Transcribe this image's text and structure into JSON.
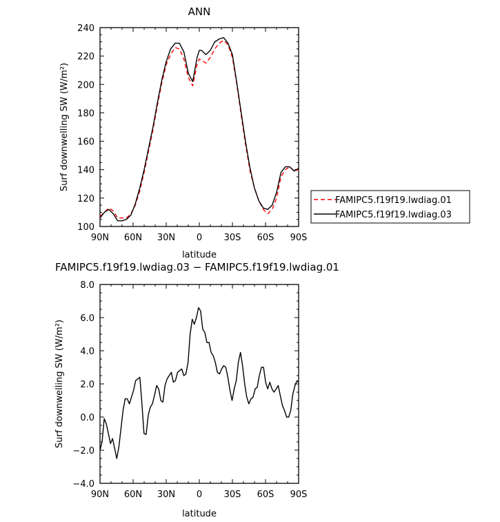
{
  "chart_data": [
    {
      "type": "line",
      "title": "ANN",
      "xlabel": "latitude",
      "ylabel": "Surf downwelling SW (W/m²)",
      "xlim": [
        90,
        -90
      ],
      "ylim": [
        100,
        240
      ],
      "x_ticks": [
        90,
        60,
        30,
        0,
        -30,
        -60,
        -90
      ],
      "x_tick_labels": [
        "90N",
        "60N",
        "30N",
        "0",
        "30S",
        "60S",
        "90S"
      ],
      "y_ticks": [
        100,
        120,
        140,
        160,
        180,
        200,
        220,
        240
      ],
      "y_tick_labels": [
        "100",
        "120",
        "140",
        "160",
        "180",
        "200",
        "220",
        "240"
      ],
      "legend_position": "right",
      "series": [
        {
          "name": "FAMIPC5.f19f19.lwdiag.01",
          "color": "#ff0000",
          "dash": "dashed",
          "x": [
            90,
            86,
            82,
            78,
            74,
            70,
            66,
            62,
            58,
            54,
            50,
            46,
            42,
            38,
            34,
            30,
            26,
            22,
            18,
            14,
            10,
            6,
            2,
            0,
            -2,
            -6,
            -10,
            -14,
            -18,
            -22,
            -26,
            -30,
            -34,
            -38,
            -42,
            -46,
            -50,
            -54,
            -58,
            -62,
            -66,
            -70,
            -74,
            -78,
            -82,
            -86,
            -90
          ],
          "y": [
            107,
            110,
            113,
            111,
            106,
            106,
            106,
            109,
            115,
            125,
            138,
            153,
            168,
            185,
            201,
            214,
            221,
            226,
            225,
            218,
            205,
            199,
            214,
            218,
            217,
            215,
            219,
            225,
            229,
            231,
            228,
            219,
            200,
            178,
            157,
            139,
            127,
            118,
            112,
            109,
            112,
            120,
            135,
            140,
            142,
            139,
            140
          ]
        },
        {
          "name": "FAMIPC5.f19f19.lwdiag.03",
          "color": "#000000",
          "dash": "solid",
          "x": [
            90,
            86,
            82,
            78,
            74,
            70,
            66,
            62,
            58,
            54,
            50,
            46,
            42,
            38,
            34,
            30,
            26,
            22,
            18,
            14,
            10,
            6,
            2,
            0,
            -2,
            -6,
            -10,
            -14,
            -18,
            -22,
            -26,
            -30,
            -34,
            -38,
            -42,
            -46,
            -50,
            -54,
            -58,
            -62,
            -66,
            -70,
            -74,
            -78,
            -82,
            -86,
            -90
          ],
          "y": [
            106,
            110,
            112,
            109,
            104,
            104,
            105,
            108,
            116,
            127,
            140,
            155,
            170,
            187,
            203,
            216,
            225,
            229,
            229,
            223,
            208,
            202,
            219,
            224,
            224,
            221,
            224,
            230,
            232,
            233,
            229,
            221,
            201,
            180,
            159,
            141,
            127,
            118,
            113,
            112,
            115,
            124,
            138,
            142,
            142,
            139,
            141
          ]
        }
      ]
    },
    {
      "type": "line",
      "title": "FAMIPC5.f19f19.lwdiag.03 − FAMIPC5.f19f19.lwdiag.01",
      "xlabel": "latitude",
      "ylabel": "Surf downwelling SW (W/m²)",
      "xlim": [
        90,
        -90
      ],
      "ylim": [
        -4,
        8
      ],
      "x_ticks": [
        90,
        60,
        30,
        0,
        -30,
        -60,
        -90
      ],
      "x_tick_labels": [
        "90N",
        "60N",
        "30N",
        "0",
        "30S",
        "60S",
        "90S"
      ],
      "y_ticks": [
        -4,
        -2,
        0,
        2,
        4,
        6,
        8
      ],
      "y_tick_labels": [
        "−4.0",
        "−2.0",
        "0.0",
        "2.0",
        "4.0",
        "6.0",
        "8.0"
      ],
      "series": [
        {
          "color": "#000000",
          "dash": "solid",
          "x": [
            90,
            88.1,
            86.2,
            84.3,
            82.4,
            80.5,
            78.6,
            76.7,
            74.8,
            72.9,
            71,
            69.1,
            67.2,
            65.3,
            63.4,
            61.5,
            59.6,
            57.7,
            55.8,
            53.9,
            52,
            50.1,
            48.2,
            46.3,
            44.4,
            42.5,
            40.6,
            38.7,
            36.8,
            34.9,
            33,
            31.1,
            29.2,
            27.3,
            25.4,
            23.5,
            21.6,
            19.7,
            17.8,
            15.9,
            14,
            12.1,
            10.2,
            8.3,
            6.4,
            4.5,
            2.6,
            0.7,
            -1.2,
            -3.1,
            -5,
            -6.9,
            -8.8,
            -10.7,
            -12.6,
            -14.5,
            -16.4,
            -18.3,
            -20.2,
            -22.1,
            -24,
            -25.9,
            -27.8,
            -29.7,
            -31.6,
            -33.5,
            -35.4,
            -37.3,
            -39.2,
            -41.1,
            -43,
            -44.9,
            -46.8,
            -48.7,
            -50.6,
            -52.5,
            -54.4,
            -56.3,
            -58.2,
            -60.1,
            -62,
            -63.9,
            -65.8,
            -67.7,
            -69.6,
            -71.5,
            -73.4,
            -75.3,
            -77.2,
            -79.1,
            -81,
            -82.9,
            -84.8,
            -86.7,
            -88.6,
            -90
          ],
          "y": [
            -2,
            -1.5,
            -0.1,
            -0.4,
            -1,
            -1.6,
            -1.3,
            -1.9,
            -2.5,
            -1.8,
            -0.7,
            0.4,
            1.1,
            1.1,
            0.8,
            1.2,
            1.6,
            2.2,
            2.3,
            2.4,
            0.8,
            -1,
            -1.05,
            0.1,
            0.6,
            0.8,
            1.3,
            1.9,
            1.7,
            1,
            0.9,
            1.9,
            2.3,
            2.5,
            2.7,
            2.1,
            2.2,
            2.7,
            2.8,
            2.9,
            2.5,
            2.6,
            3.3,
            5,
            5.9,
            5.6,
            6,
            6.6,
            6.4,
            5.3,
            5.1,
            4.5,
            4.5,
            3.9,
            3.7,
            3.3,
            2.7,
            2.6,
            2.9,
            3.1,
            3,
            2.4,
            1.6,
            1,
            1.7,
            2.2,
            3.3,
            3.9,
            3.1,
            2,
            1.2,
            0.8,
            1.1,
            1.2,
            1.7,
            1.8,
            2.5,
            3,
            3,
            2.1,
            1.7,
            2.1,
            1.7,
            1.5,
            1.7,
            1.9,
            1.3,
            0.7,
            0.4,
            0,
            0,
            0.4,
            1.4,
            1.9,
            2.2,
            2.1
          ]
        }
      ]
    }
  ]
}
